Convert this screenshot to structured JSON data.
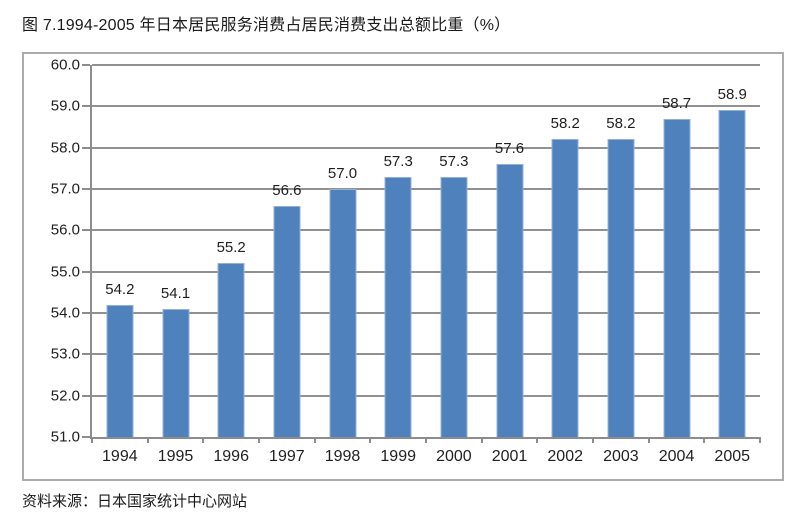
{
  "title": "图 7.1994-2005 年日本居民服务消费占居民消费支出总额比重（%）",
  "source": "资料来源：日本国家统计中心网站",
  "chart_data": {
    "type": "bar",
    "title": "图 7.1994-2005 年日本居民服务消费占居民消费支出总额比重（%）",
    "categories": [
      "1994",
      "1995",
      "1996",
      "1997",
      "1998",
      "1999",
      "2000",
      "2001",
      "2002",
      "2003",
      "2004",
      "2005"
    ],
    "values": [
      54.2,
      54.1,
      55.2,
      56.6,
      57.0,
      57.3,
      57.3,
      57.6,
      58.2,
      58.2,
      58.7,
      58.9
    ],
    "value_labels": [
      "54.2",
      "54.1",
      "55.2",
      "56.6",
      "57.0",
      "57.3",
      "57.3",
      "57.6",
      "58.2",
      "58.2",
      "58.7",
      "58.9"
    ],
    "xlabel": "",
    "ylabel": "",
    "ylim": [
      51.0,
      60.0
    ],
    "ytick_step": 1.0,
    "yticks": [
      "60.0",
      "59.0",
      "58.0",
      "57.0",
      "56.0",
      "55.0",
      "54.0",
      "53.0",
      "52.0",
      "51.0"
    ],
    "grid": true,
    "legend_position": "none",
    "bar_color": "#4f81bd",
    "bar_border_color": "#93b1d7",
    "gridline_color": "#919191",
    "axis_color": "#8c8c8c",
    "frame_border_color": "#ababab",
    "text_color": "#1f1f1f",
    "source": "资料来源：日本国家统计中心网站"
  }
}
